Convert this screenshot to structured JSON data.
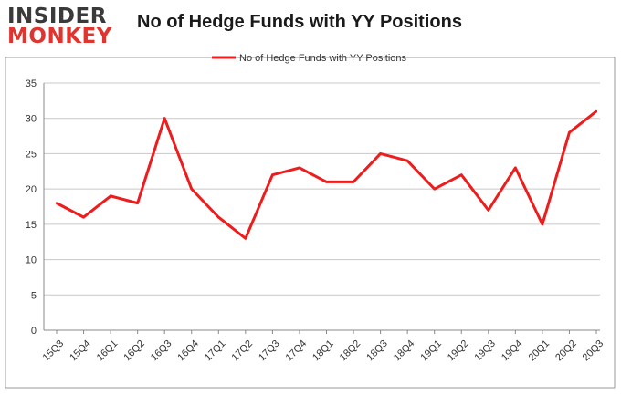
{
  "logo": {
    "line1": "INSIDER",
    "line2": "MONKEY"
  },
  "chart_data": {
    "type": "line",
    "title": "No of Hedge Funds with YY Positions",
    "categories": [
      "15Q3",
      "15Q4",
      "16Q1",
      "16Q2",
      "16Q3",
      "16Q4",
      "17Q1",
      "17Q2",
      "17Q3",
      "17Q4",
      "18Q1",
      "18Q2",
      "18Q3",
      "18Q4",
      "19Q1",
      "19Q2",
      "19Q3",
      "19Q4",
      "20Q1",
      "20Q2",
      "20Q3"
    ],
    "series": [
      {
        "name": "No of Hedge Funds with YY Positions",
        "values": [
          18,
          16,
          19,
          18,
          30,
          20,
          16,
          13,
          22,
          23,
          21,
          21,
          25,
          24,
          20,
          22,
          17,
          23,
          15,
          28,
          31
        ],
        "color": "#ee1c1c"
      }
    ],
    "ylim": [
      0,
      35
    ],
    "yticks": [
      0,
      5,
      10,
      15,
      20,
      25,
      30,
      35
    ],
    "grid": true,
    "legend": "top-center"
  }
}
